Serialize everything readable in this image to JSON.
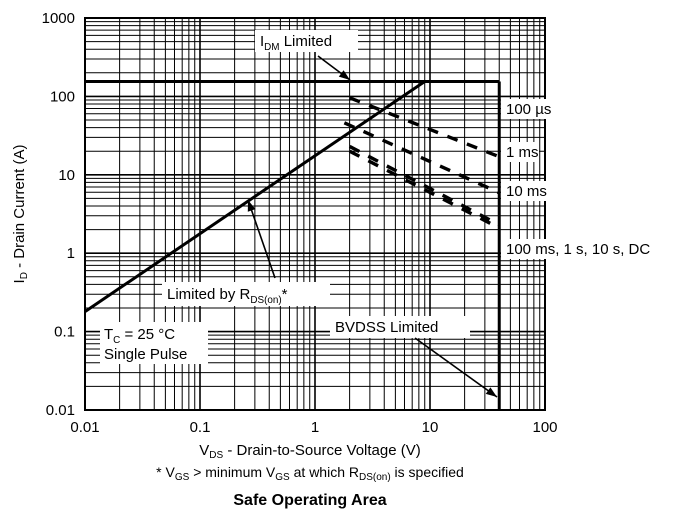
{
  "chart_data": {
    "type": "line",
    "title": "Safe Operating Area",
    "xscale": "log",
    "yscale": "log",
    "xlim": [
      0.01,
      100
    ],
    "ylim": [
      0.01,
      1000
    ],
    "grid": true,
    "xticks": [
      "0.01",
      "0.1",
      "1",
      "10",
      "100"
    ],
    "yticks": [
      "1000",
      "100",
      "10",
      "1",
      "0.1",
      "0.01"
    ],
    "xlabel": {
      "pre": "V",
      "sub": "DS",
      "post": " - Drain-to-Source Voltage (V)"
    },
    "ylabel": {
      "pre": "I",
      "sub": "D",
      "post": " - Drain Current (A)"
    },
    "footnote": {
      "t1": "* V",
      "s1": "GS",
      "t2": " > minimum V",
      "s2": "GS",
      "t3": " at which R",
      "s3": "DS(on)",
      "t4": " is specified"
    },
    "series": [
      {
        "label": "100 µs",
        "points": [
          [
            2.0,
            96
          ],
          [
            40,
            17
          ]
        ]
      },
      {
        "label": "1 ms",
        "points": [
          [
            1.8,
            46
          ],
          [
            40,
            5.9
          ]
        ]
      },
      {
        "label": "10 ms",
        "points": [
          [
            2.0,
            23
          ],
          [
            40,
            2.3
          ]
        ]
      },
      {
        "label": "100 ms, 1 s, 10 s, DC",
        "points": [
          [
            2.0,
            20
          ],
          [
            40,
            2.1
          ]
        ]
      }
    ],
    "boundary": {
      "rds_on": [
        [
          0.01,
          0.18
        ],
        [
          9.0,
          155
        ]
      ],
      "idm_limit": [
        [
          0.01,
          155
        ],
        [
          40,
          155
        ]
      ],
      "bvdss_limit": [
        [
          40,
          0.01
        ],
        [
          40,
          155
        ]
      ]
    },
    "annotations": {
      "idm": {
        "pre": "I",
        "sub": "DM",
        "post": " Limited"
      },
      "rds": {
        "pre": "Limited by R",
        "sub": "DS(on)",
        "post": "*"
      },
      "tc": {
        "pre": "T",
        "sub": "C",
        "post": " = 25 °C"
      },
      "pulse": "Single Pulse",
      "bvdss": "BVDSS Limited"
    }
  }
}
